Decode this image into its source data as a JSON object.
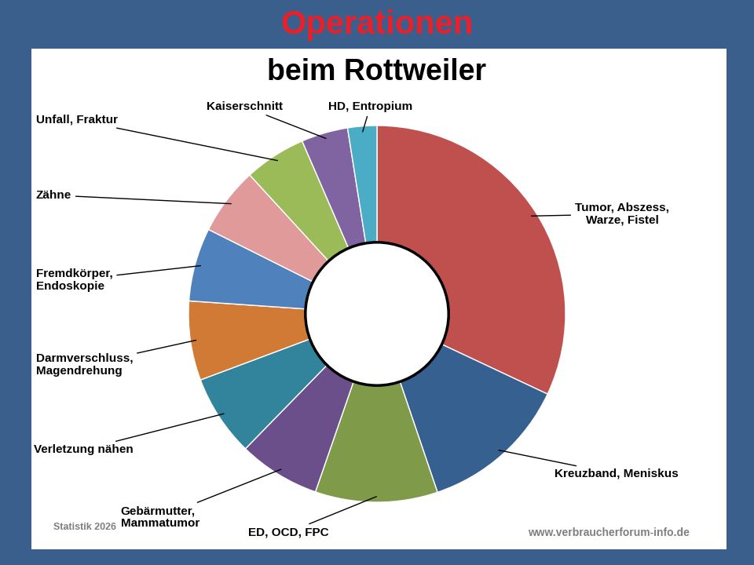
{
  "chart_data": {
    "type": "pie",
    "title": "Operationen",
    "subtitle": "beim Rottweiler",
    "categories": [
      "Tumor, Abszess,\nWarze, Fistel",
      "Kreuzband, Meniskus",
      "ED, OCD, FPC",
      "Gebärmutter,\nMammatumor",
      "Verletzung nähen",
      "Darmverschluss,\nMagendrehung",
      "Fremdkörper,\nEndoskopie",
      "Zähne",
      "Unfall, Fraktur",
      "Kaiserschnitt",
      "HD, Entropium"
    ],
    "values": [
      32,
      12.8,
      10.5,
      7,
      7,
      6.8,
      6.3,
      5.8,
      5.3,
      4,
      2.5
    ],
    "colors": [
      "#c0504d",
      "#35608f",
      "#7f9a48",
      "#6a4f8a",
      "#31849b",
      "#d07a35",
      "#4f81bd",
      "#e09a9a",
      "#9bbb59",
      "#8064a2",
      "#4bacc6"
    ],
    "footnote": "Statistik 2026",
    "source": "www.verbraucherforum-info.de"
  }
}
